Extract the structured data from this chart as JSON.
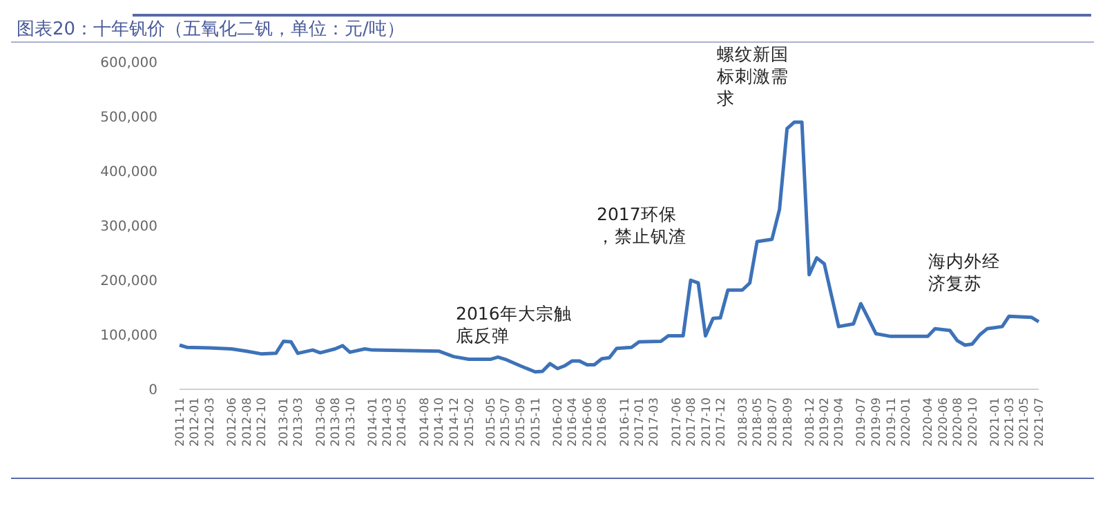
{
  "chart_data": {
    "type": "line",
    "title": "图表20：十年钒价（五氧化二钒，单位：元/吨）",
    "x": [
      "2011-11",
      "2011-12",
      "2012-03",
      "2012-06",
      "2012-08",
      "2012-10",
      "2012-12",
      "2013-01",
      "2013-02",
      "2013-03",
      "2013-05",
      "2013-06",
      "2013-08",
      "2013-09",
      "2013-10",
      "2013-12",
      "2014-01",
      "2014-10",
      "2014-12",
      "2015-02",
      "2015-05",
      "2015-06",
      "2015-07",
      "2015-09",
      "2015-11",
      "2015-12",
      "2016-01",
      "2016-02",
      "2016-03",
      "2016-04",
      "2016-05",
      "2016-06",
      "2016-07",
      "2016-08",
      "2016-09",
      "2016-10",
      "2016-12",
      "2017-01",
      "2017-04",
      "2017-05",
      "2017-07",
      "2017-08",
      "2017-09",
      "2017-10",
      "2017-11",
      "2017-12",
      "2018-01",
      "2018-03",
      "2018-04",
      "2018-05",
      "2018-07",
      "2018-08",
      "2018-09",
      "2018-10",
      "2018-11",
      "2018-12",
      "2019-01",
      "2019-02",
      "2019-03",
      "2019-04",
      "2019-06",
      "2019-07",
      "2019-08",
      "2019-09",
      "2019-11",
      "2020-04",
      "2020-05",
      "2020-07",
      "2020-08",
      "2020-09",
      "2020-10",
      "2020-11",
      "2020-12",
      "2021-02",
      "2021-03",
      "2021-06",
      "2021-07"
    ],
    "series": [
      {
        "color": "#3d72b8",
        "values": [
          81000,
          77000,
          76000,
          74000,
          70000,
          65000,
          66000,
          88000,
          87000,
          66000,
          72000,
          67000,
          74000,
          80000,
          68000,
          74000,
          72000,
          70000,
          60000,
          55000,
          55000,
          59000,
          55000,
          43000,
          32000,
          33000,
          47000,
          38000,
          43000,
          52000,
          52000,
          45000,
          45000,
          56000,
          58000,
          75000,
          77000,
          87000,
          88000,
          98000,
          98000,
          200000,
          195000,
          98000,
          130000,
          131000,
          182000,
          182000,
          195000,
          271000,
          275000,
          330000,
          478000,
          490000,
          490000,
          210000,
          241000,
          230000,
          175000,
          115000,
          120000,
          157000,
          130000,
          102000,
          97000,
          97000,
          111000,
          108000,
          89000,
          81000,
          83000,
          100000,
          111000,
          115000,
          134000,
          132000,
          124000
        ]
      }
    ],
    "xlim": [
      "2011-11",
      "2021-07"
    ],
    "xticks": [
      "2011-11",
      "2012-01",
      "2012-03",
      "2012-06",
      "2012-08",
      "2012-10",
      "2013-01",
      "2013-03",
      "2013-06",
      "2013-08",
      "2013-10",
      "2014-01",
      "2014-03",
      "2014-05",
      "2014-08",
      "2014-10",
      "2014-12",
      "2015-02",
      "2015-05",
      "2015-07",
      "2015-09",
      "2015-11",
      "2016-02",
      "2016-04",
      "2016-06",
      "2016-08",
      "2016-11",
      "2017-01",
      "2017-03",
      "2017-06",
      "2017-08",
      "2017-10",
      "2017-12",
      "2018-03",
      "2018-05",
      "2018-07",
      "2018-09",
      "2018-12",
      "2019-02",
      "2019-04",
      "2019-07",
      "2019-09",
      "2019-11",
      "2020-01",
      "2020-04",
      "2020-06",
      "2020-08",
      "2020-10",
      "2021-01",
      "2021-03",
      "2021-05",
      "2021-07"
    ],
    "ylim": [
      0,
      600000
    ],
    "yticks": [
      0,
      {
        "value": 100000,
        "label": "100,000"
      },
      {
        "value": 200000,
        "label": "200,000"
      },
      {
        "value": 300000,
        "label": "300,000"
      },
      {
        "value": 400000,
        "label": "400,000"
      },
      {
        "value": 500000,
        "label": "500,000"
      },
      {
        "value": 600000,
        "label": "600,000"
      }
    ],
    "grid": false,
    "marker": "none",
    "line_style": "solid",
    "annotations": [
      "2016年大宗触底反弹",
      "2017环保，禁止钒渣",
      "螺纹新国标刺激需求",
      "海内外经济复苏"
    ]
  }
}
